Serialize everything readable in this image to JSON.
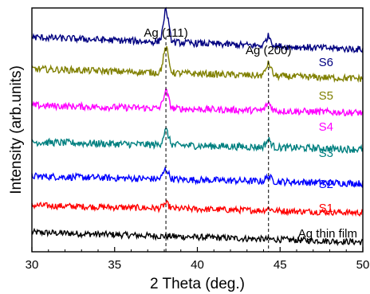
{
  "chart_data": {
    "type": "line",
    "title": "",
    "xlabel": "2 Theta (deg.)",
    "ylabel": "Intensity (arb.units)",
    "xlim": [
      30,
      50
    ],
    "ylim": [
      0,
      100
    ],
    "x_ticks": [
      30,
      35,
      40,
      45,
      50
    ],
    "x_tick_labels": [
      "30",
      "35",
      "40",
      "45",
      "50"
    ],
    "y_ticks_shown": false,
    "grid": false,
    "legend": "labels placed at right end of each trace",
    "annotations": [
      {
        "text": "Ag (111)",
        "x": 38.1
      },
      {
        "text": "Ag (200)",
        "x": 44.3
      }
    ],
    "peak_markers": [
      38.1,
      44.3
    ],
    "series": [
      {
        "name": "Ag thin film",
        "color": "#000000",
        "baseline": 4,
        "noise": 1.3,
        "peaks": [],
        "trend": 4
      },
      {
        "name": "S1",
        "color": "#ff0000",
        "baseline": 16,
        "noise": 1.3,
        "peaks": [
          {
            "x": 38.1,
            "h": 2
          },
          {
            "x": 44.3,
            "h": 1
          }
        ],
        "trend": 3
      },
      {
        "name": "S2",
        "color": "#0000ff",
        "baseline": 28,
        "noise": 1.4,
        "peaks": [
          {
            "x": 38.1,
            "h": 4
          },
          {
            "x": 44.3,
            "h": 2
          }
        ],
        "trend": 3
      },
      {
        "name": "S3",
        "color": "#008080",
        "baseline": 42,
        "noise": 1.5,
        "peaks": [
          {
            "x": 38.1,
            "h": 6
          },
          {
            "x": 44.3,
            "h": 3
          }
        ],
        "trend": 3
      },
      {
        "name": "S4",
        "color": "#ff00ff",
        "baseline": 57,
        "noise": 1.4,
        "peaks": [
          {
            "x": 38.1,
            "h": 7
          },
          {
            "x": 44.3,
            "h": 3
          }
        ],
        "trend": 3
      },
      {
        "name": "S5",
        "color": "#808000",
        "baseline": 71,
        "noise": 1.4,
        "peaks": [
          {
            "x": 38.1,
            "h": 10
          },
          {
            "x": 44.3,
            "h": 5
          }
        ],
        "trend": 4
      },
      {
        "name": "S6",
        "color": "#000080",
        "baseline": 83,
        "noise": 1.4,
        "peaks": [
          {
            "x": 38.1,
            "h": 13
          },
          {
            "x": 44.3,
            "h": 4
          }
        ],
        "trend": 5
      }
    ]
  }
}
